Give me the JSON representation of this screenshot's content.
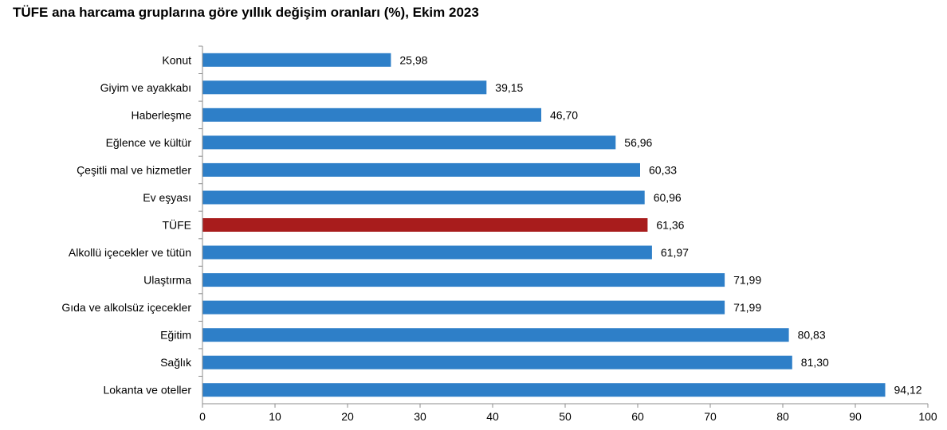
{
  "title": "TÜFE ana harcama gruplarına göre yıllık değişim oranları (%), Ekim 2023",
  "colors": {
    "bar": "#2E7FC8",
    "highlight": "#A81C1C",
    "axis": "#8C8C8C"
  },
  "chart_data": {
    "type": "bar",
    "orientation": "horizontal",
    "title": "TÜFE ana harcama gruplarına göre yıllık değişim oranları (%), Ekim 2023",
    "categories": [
      "Konut",
      "Giyim ve ayakkabı",
      "Haberleşme",
      "Eğlence ve kültür",
      "Çeşitli mal ve hizmetler",
      "Ev eşyası",
      "TÜFE",
      "Alkollü içecekler ve tütün",
      "Ulaştırma",
      "Gıda ve alkolsüz içecekler",
      "Eğitim",
      "Sağlık",
      "Lokanta ve oteller"
    ],
    "values": [
      25.98,
      39.15,
      46.7,
      56.96,
      60.33,
      60.96,
      61.36,
      61.97,
      71.99,
      71.99,
      80.83,
      81.3,
      94.12
    ],
    "value_labels": [
      "25,98",
      "39,15",
      "46,70",
      "56,96",
      "60,33",
      "60,96",
      "61,36",
      "61,97",
      "71,99",
      "71,99",
      "80,83",
      "81,30",
      "94,12"
    ],
    "highlight_category": "TÜFE",
    "xlim": [
      0,
      100
    ],
    "xticks": [
      0,
      10,
      20,
      30,
      40,
      50,
      60,
      70,
      80,
      90,
      100
    ],
    "xlabel": "",
    "ylabel": "",
    "grid": false,
    "legend": "none"
  }
}
